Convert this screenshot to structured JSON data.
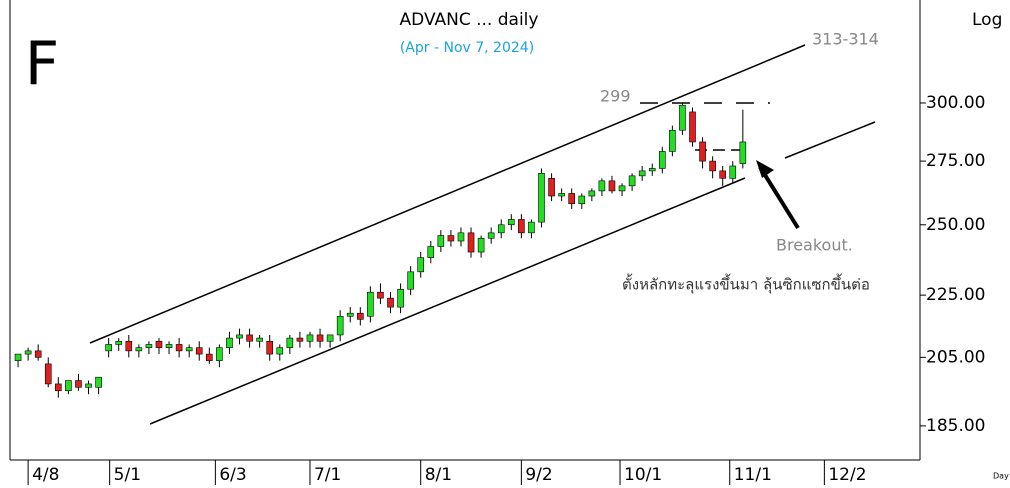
{
  "chart_data": {
    "type": "candlestick",
    "title": "ADVANC ... daily",
    "subtitle": "(Apr - Nov 7, 2024)",
    "scale_label": "Log",
    "footer_label": "Day",
    "log_scale": true,
    "annotations": {
      "letter": "F",
      "target": "313-314",
      "high": "299",
      "breakout": "Breakout.",
      "note": "ตั้งหลักทะลุแรงขึ้นมา ลุ้นซิกแซกขึ้นต่อ"
    },
    "up_color": "#22dd22",
    "down_color": "#e02020",
    "x": [
      0,
      1,
      2,
      3,
      4,
      5,
      6,
      7,
      8,
      9,
      10,
      11,
      12,
      13,
      14,
      15,
      16,
      17,
      18,
      19,
      20,
      21,
      22,
      23,
      24,
      25,
      26,
      27,
      28,
      29,
      30,
      31,
      32,
      33,
      34,
      35,
      36,
      37,
      38,
      39,
      40,
      41,
      42,
      43,
      44,
      45,
      46,
      47,
      48,
      49,
      50,
      51,
      52,
      53,
      54,
      55,
      56,
      57,
      58,
      59,
      60,
      61,
      62,
      63,
      64,
      65,
      66,
      67,
      68,
      69,
      70,
      71,
      72
    ],
    "open": [
      204,
      206,
      207,
      203,
      197,
      195,
      198,
      196,
      196,
      207,
      209,
      210,
      207,
      208,
      210,
      208,
      209,
      207,
      208,
      206,
      204,
      208,
      211,
      212,
      210,
      210,
      206,
      208,
      211,
      210,
      212,
      210,
      212,
      218,
      219,
      218,
      226,
      224,
      221,
      227,
      233,
      238,
      242,
      246,
      244,
      247,
      240,
      245,
      247,
      250,
      252,
      247,
      251,
      268,
      261,
      262,
      258,
      261,
      263,
      267,
      263,
      265,
      269,
      271,
      272,
      279,
      288,
      296,
      283,
      275,
      271,
      268,
      274
    ],
    "high": [
      206,
      208,
      209,
      205,
      199,
      198,
      200,
      198,
      199,
      211,
      211,
      212,
      209,
      210,
      211,
      210,
      211,
      209,
      210,
      208,
      209,
      213,
      214,
      214,
      212,
      212,
      209,
      212,
      213,
      213,
      214,
      212,
      220,
      221,
      221,
      228,
      229,
      226,
      229,
      235,
      240,
      244,
      248,
      248,
      249,
      249,
      246,
      249,
      252,
      254,
      254,
      252,
      272,
      270,
      264,
      264,
      262,
      264,
      268,
      269,
      266,
      270,
      273,
      274,
      281,
      290,
      300,
      298,
      285,
      277,
      273,
      275,
      297
    ],
    "low": [
      202,
      204,
      204,
      196,
      193,
      194,
      195,
      194,
      194,
      205,
      207,
      205,
      205,
      206,
      206,
      206,
      205,
      205,
      204,
      203,
      202,
      206,
      209,
      208,
      208,
      204,
      204,
      206,
      208,
      208,
      208,
      208,
      210,
      216,
      215,
      216,
      222,
      219,
      219,
      225,
      231,
      236,
      240,
      242,
      242,
      238,
      238,
      243,
      245,
      248,
      245,
      245,
      249,
      259,
      259,
      256,
      256,
      259,
      261,
      262,
      261,
      263,
      267,
      269,
      270,
      277,
      286,
      281,
      272,
      268,
      265,
      266,
      272
    ],
    "close": [
      206,
      207,
      205,
      197,
      195,
      198,
      196,
      197,
      199,
      209,
      210,
      207,
      208,
      209,
      208,
      209,
      207,
      208,
      206,
      204,
      208,
      211,
      212,
      210,
      211,
      206,
      208,
      211,
      210,
      212,
      210,
      212,
      218,
      219,
      217,
      226,
      224,
      221,
      227,
      233,
      238,
      242,
      246,
      244,
      247,
      240,
      245,
      247,
      250,
      252,
      247,
      251,
      270,
      261,
      262,
      258,
      261,
      263,
      267,
      263,
      265,
      269,
      271,
      272,
      279,
      288,
      299,
      283,
      275,
      271,
      268,
      273,
      283
    ],
    "xlim": [
      -0.8,
      89.6
    ],
    "xticks": [
      {
        "value": 1,
        "label": "4/8"
      },
      {
        "value": 9.1,
        "label": "5/1"
      },
      {
        "value": 19.6,
        "label": "6/3"
      },
      {
        "value": 29,
        "label": "7/1"
      },
      {
        "value": 40,
        "label": "8/1"
      },
      {
        "value": 50,
        "label": "9/2"
      },
      {
        "value": 59.8,
        "label": "10/1"
      },
      {
        "value": 70.7,
        "label": "11/1"
      },
      {
        "value": 80.1,
        "label": "12/2"
      }
    ],
    "ylim": [
      175.8,
      350
    ],
    "yticks": [
      {
        "value": 185,
        "label": "185.00"
      },
      {
        "value": 205,
        "label": "205.00"
      },
      {
        "value": 225,
        "label": "225.00"
      },
      {
        "value": 250,
        "label": "250.00"
      },
      {
        "value": 275,
        "label": "275.00"
      },
      {
        "value": 300,
        "label": "300.00"
      }
    ]
  }
}
